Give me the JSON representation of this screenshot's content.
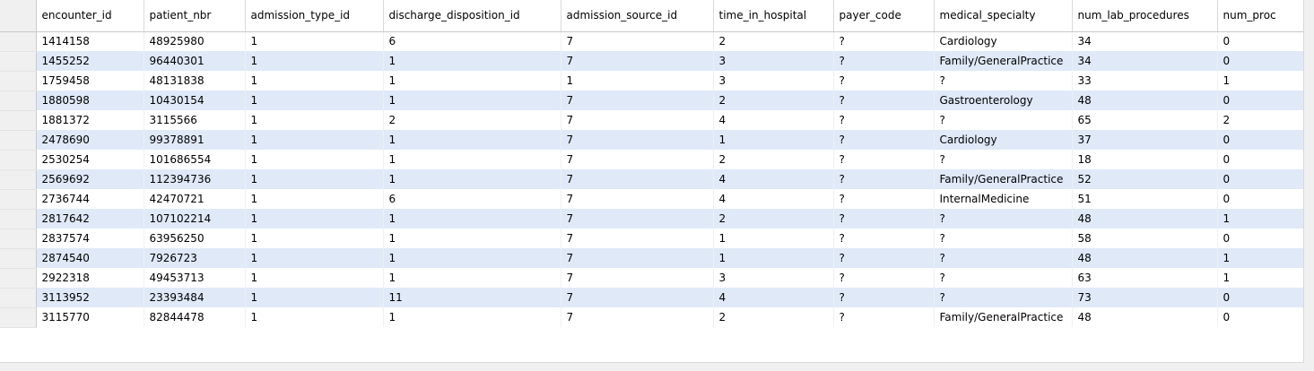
{
  "grid": {
    "columns": [
      "encounter_id",
      "patient_nbr",
      "admission_type_id",
      "discharge_disposition_id",
      "admission_source_id",
      "time_in_hospital",
      "payer_code",
      "medical_specialty",
      "num_lab_procedures",
      "num_proc"
    ],
    "rows": [
      [
        "1414158",
        "48925980",
        "1",
        "6",
        "7",
        "2",
        "?",
        "Cardiology",
        "34",
        "0"
      ],
      [
        "1455252",
        "96440301",
        "1",
        "1",
        "7",
        "3",
        "?",
        "Family/GeneralPractice",
        "34",
        "0"
      ],
      [
        "1759458",
        "48131838",
        "1",
        "1",
        "1",
        "3",
        "?",
        "?",
        "33",
        "1"
      ],
      [
        "1880598",
        "10430154",
        "1",
        "1",
        "7",
        "2",
        "?",
        "Gastroenterology",
        "48",
        "0"
      ],
      [
        "1881372",
        "3115566",
        "1",
        "2",
        "7",
        "4",
        "?",
        "?",
        "65",
        "2"
      ],
      [
        "2478690",
        "99378891",
        "1",
        "1",
        "7",
        "1",
        "?",
        "Cardiology",
        "37",
        "0"
      ],
      [
        "2530254",
        "101686554",
        "1",
        "1",
        "7",
        "2",
        "?",
        "?",
        "18",
        "0"
      ],
      [
        "2569692",
        "112394736",
        "1",
        "1",
        "7",
        "4",
        "?",
        "Family/GeneralPractice",
        "52",
        "0"
      ],
      [
        "2736744",
        "42470721",
        "1",
        "6",
        "7",
        "4",
        "?",
        "InternalMedicine",
        "51",
        "0"
      ],
      [
        "2817642",
        "107102214",
        "1",
        "1",
        "7",
        "2",
        "?",
        "?",
        "48",
        "1"
      ],
      [
        "2837574",
        "63956250",
        "1",
        "1",
        "7",
        "1",
        "?",
        "?",
        "58",
        "0"
      ],
      [
        "2874540",
        "7926723",
        "1",
        "1",
        "7",
        "1",
        "?",
        "?",
        "48",
        "1"
      ],
      [
        "2922318",
        "49453713",
        "1",
        "1",
        "7",
        "3",
        "?",
        "?",
        "63",
        "1"
      ],
      [
        "3113952",
        "23393484",
        "1",
        "11",
        "7",
        "4",
        "?",
        "?",
        "73",
        "0"
      ],
      [
        "3115770",
        "82844478",
        "1",
        "1",
        "7",
        "2",
        "?",
        "Family/GeneralPractice",
        "48",
        "0"
      ]
    ]
  }
}
